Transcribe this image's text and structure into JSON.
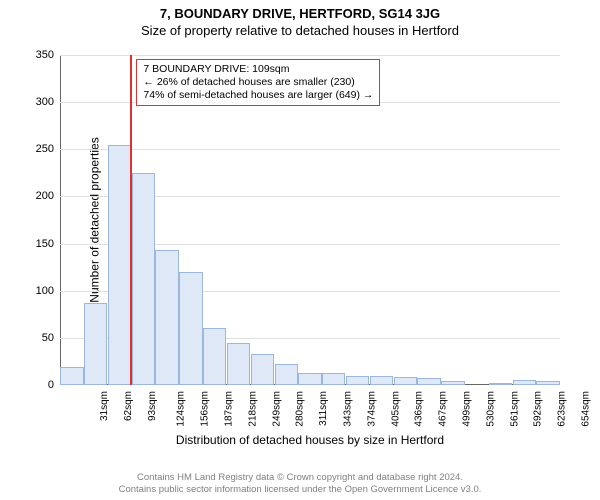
{
  "header": {
    "title": "7, BOUNDARY DRIVE, HERTFORD, SG14 3JG",
    "subtitle": "Size of property relative to detached houses in Hertford"
  },
  "chart": {
    "type": "histogram",
    "ylim": [
      0,
      350
    ],
    "ytick_step": 50,
    "ylabel": "Number of detached properties",
    "xlabel": "Distribution of detached houses by size in Hertford",
    "x_labels": [
      "31sqm",
      "62sqm",
      "93sqm",
      "124sqm",
      "156sqm",
      "187sqm",
      "218sqm",
      "249sqm",
      "280sqm",
      "311sqm",
      "343sqm",
      "374sqm",
      "405sqm",
      "436sqm",
      "467sqm",
      "499sqm",
      "530sqm",
      "561sqm",
      "592sqm",
      "623sqm",
      "654sqm"
    ],
    "values": [
      19,
      87,
      255,
      225,
      143,
      120,
      60,
      45,
      33,
      22,
      13,
      13,
      10,
      10,
      8,
      7,
      4,
      0,
      2,
      5,
      4
    ],
    "bar_fill": "#dee8f6",
    "bar_stroke": "#9bb7db",
    "grid_color": "#e0e0e0",
    "background_color": "#ffffff",
    "label_fontsize": 12,
    "tick_fontsize": 11,
    "marker": {
      "index_after_bar": 2,
      "color": "#e03030",
      "annotation_border": "#e03030",
      "lines": {
        "l1": "7 BOUNDARY DRIVE: 109sqm",
        "l2": "← 26% of detached houses are smaller (230)",
        "l3": "74% of semi-detached houses are larger (649) →"
      }
    }
  },
  "footer": {
    "line1": "Contains HM Land Registry data © Crown copyright and database right 2024.",
    "line2": "Contains public sector information licensed under the Open Government Licence v3.0."
  }
}
